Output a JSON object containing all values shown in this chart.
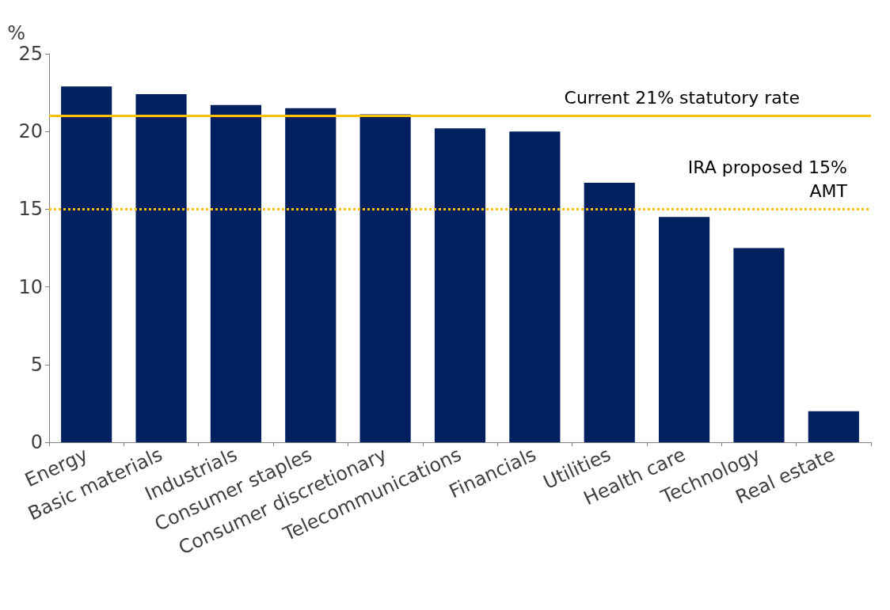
{
  "chart_data": {
    "type": "bar",
    "ylabel": "%",
    "categories": [
      "Energy",
      "Basic materials",
      "Industrials",
      "Consumer staples",
      "Consumer discretionary",
      "Telecommunications",
      "Financials",
      "Utilities",
      "Health care",
      "Technology",
      "Real estate"
    ],
    "values": [
      22.9,
      22.4,
      21.7,
      21.5,
      21.1,
      20.2,
      20.0,
      16.7,
      14.5,
      12.5,
      2.0
    ],
    "color": "#002060",
    "ylim": [
      0,
      25
    ],
    "yticks": [
      0,
      5,
      10,
      15,
      20,
      25
    ],
    "grid": false,
    "ref_lines": [
      {
        "axis": "y",
        "value": 21,
        "label": "Current 21% statutory rate",
        "color": "#ffc000",
        "line_style": "solid"
      },
      {
        "axis": "y",
        "value": 15,
        "label": "IRA proposed 15%\nAMT",
        "color": "#ffc000",
        "line_style": "dotted"
      }
    ]
  }
}
